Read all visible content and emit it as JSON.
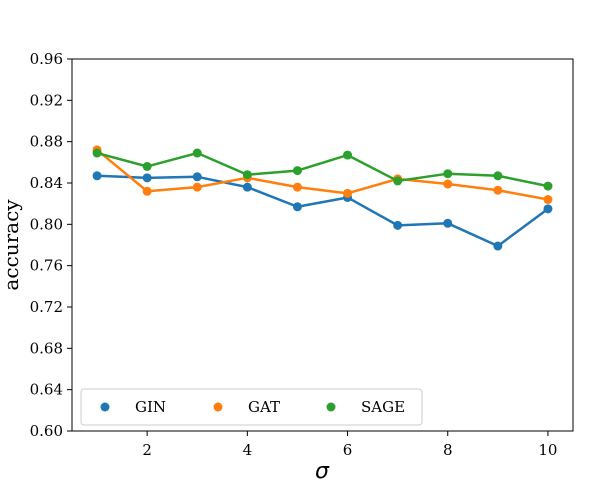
{
  "chart_data": {
    "type": "line",
    "title": "",
    "xlabel": "σ",
    "ylabel": "accuracy",
    "xlim": [
      0.5,
      10.5
    ],
    "ylim": [
      0.6,
      0.96
    ],
    "xticks": [
      2,
      4,
      6,
      8,
      10
    ],
    "xtick_labels": [
      "2",
      "4",
      "6",
      "8",
      "10"
    ],
    "yticks": [
      0.6,
      0.64,
      0.68,
      0.72,
      0.76,
      0.8,
      0.84,
      0.88,
      0.92,
      0.96
    ],
    "ytick_labels": [
      "0.60",
      "0.64",
      "0.68",
      "0.72",
      "0.76",
      "0.80",
      "0.84",
      "0.88",
      "0.92",
      "0.96"
    ],
    "grid": false,
    "legend": "lower-left",
    "x": [
      1,
      2,
      3,
      4,
      5,
      6,
      7,
      8,
      9,
      10
    ],
    "series": [
      {
        "name": "GIN",
        "color": "#1f77b4",
        "values": [
          0.847,
          0.845,
          0.846,
          0.836,
          0.817,
          0.826,
          0.799,
          0.801,
          0.779,
          0.815
        ]
      },
      {
        "name": "GAT",
        "color": "#ff7f0e",
        "values": [
          0.872,
          0.832,
          0.836,
          0.845,
          0.836,
          0.83,
          0.844,
          0.839,
          0.833,
          0.824
        ]
      },
      {
        "name": "SAGE",
        "color": "#2ca02c",
        "values": [
          0.869,
          0.856,
          0.869,
          0.848,
          0.852,
          0.867,
          0.842,
          0.849,
          0.847,
          0.837
        ]
      }
    ]
  }
}
